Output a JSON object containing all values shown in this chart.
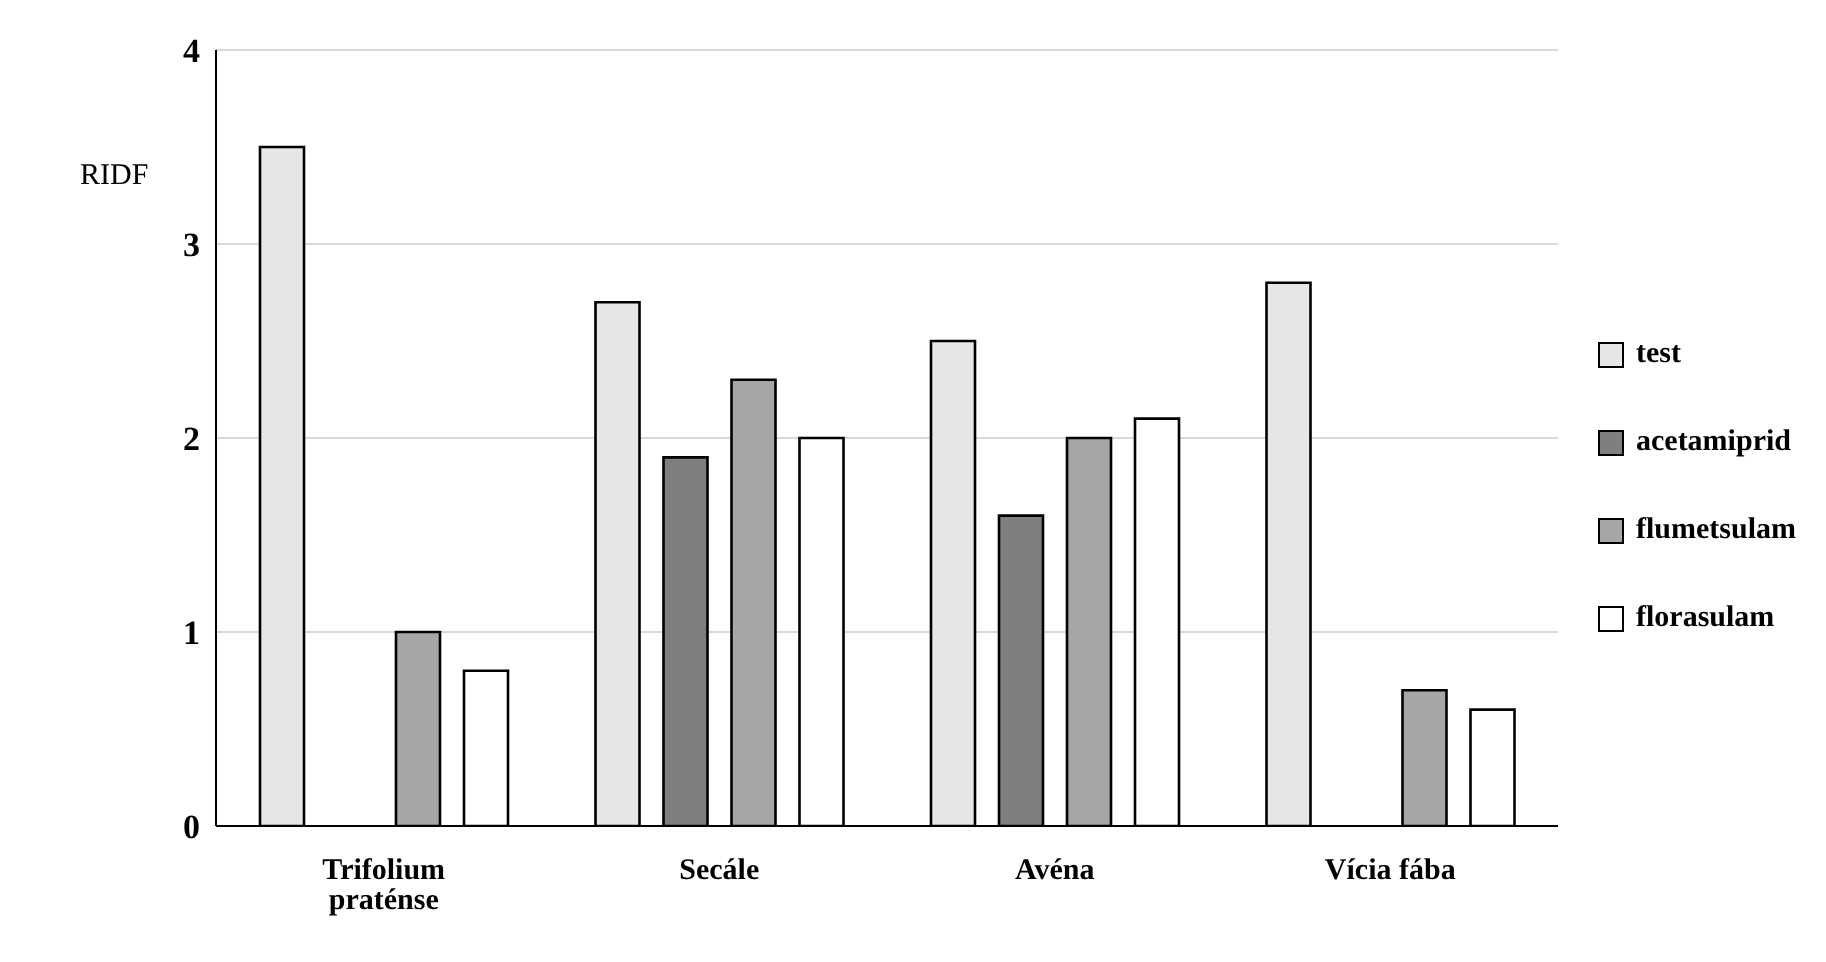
{
  "chart_data": {
    "type": "bar",
    "ylabel": "RIDF",
    "categories": [
      "Trifolium praténse",
      "Secále",
      "Avéna",
      "Vícia fába"
    ],
    "series": [
      {
        "name": "test",
        "color": "#e6e6e6",
        "values": [
          3.5,
          2.7,
          2.5,
          2.8
        ]
      },
      {
        "name": "acetamiprid",
        "color": "#7f7f7f",
        "values": [
          null,
          1.9,
          1.6,
          null
        ]
      },
      {
        "name": "flumetsulam",
        "color": "#a6a6a6",
        "values": [
          1.0,
          2.3,
          2.0,
          0.7
        ]
      },
      {
        "name": "florasulam",
        "color": "#ffffff",
        "values": [
          0.8,
          2.0,
          2.1,
          0.6
        ]
      }
    ],
    "ylim": [
      0,
      4
    ],
    "yticks": [
      0,
      1,
      2,
      3,
      4
    ],
    "grid": "y",
    "legend": "right"
  }
}
